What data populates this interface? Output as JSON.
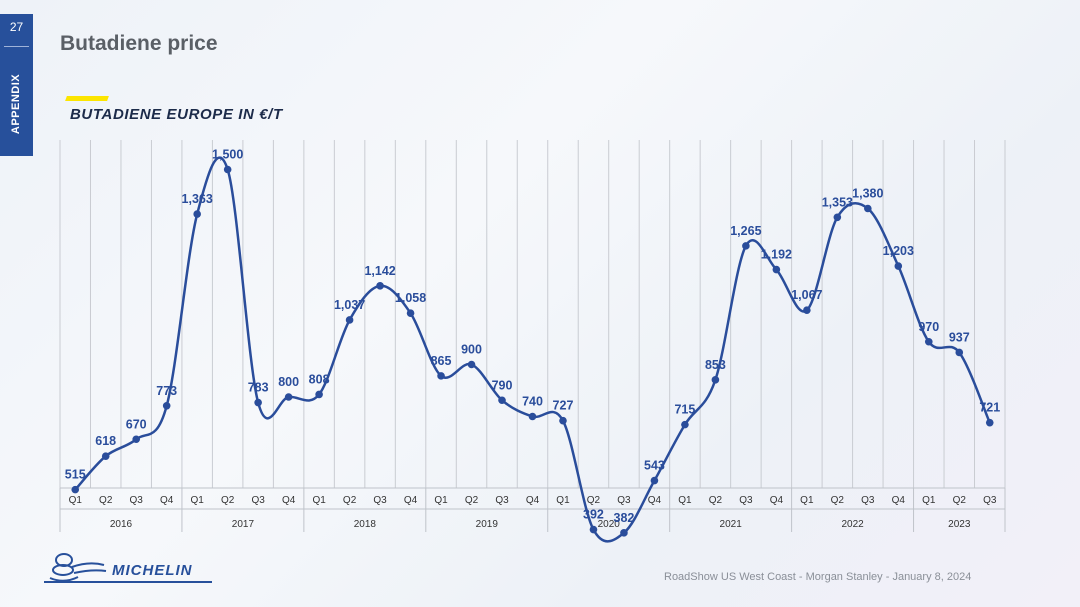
{
  "slide": {
    "number": "27",
    "section": "APPENDIX",
    "title": "Butadiene price",
    "footer": "RoadShow US West Coast - Morgan Stanley - January 8, 2024",
    "brand": "MICHELIN",
    "colors": {
      "accent": "#27509b",
      "highlight": "#fce500",
      "series": "#2a4d9b"
    },
    "icons": [
      "michelin-man-logo-icon"
    ]
  },
  "chart_data": {
    "type": "line",
    "title": "BUTADIENE EUROPE IN €/T",
    "categories": [
      "Q1",
      "Q2",
      "Q3",
      "Q4",
      "Q1",
      "Q2",
      "Q3",
      "Q4",
      "Q1",
      "Q2",
      "Q3",
      "Q4",
      "Q1",
      "Q2",
      "Q3",
      "Q4",
      "Q1",
      "Q2",
      "Q3",
      "Q4",
      "Q1",
      "Q2",
      "Q3",
      "Q4",
      "Q1",
      "Q2",
      "Q3",
      "Q4",
      "Q1",
      "Q2",
      "Q3"
    ],
    "years": [
      {
        "label": "2016",
        "quarters": 4
      },
      {
        "label": "2017",
        "quarters": 4
      },
      {
        "label": "2018",
        "quarters": 4
      },
      {
        "label": "2019",
        "quarters": 4
      },
      {
        "label": "2020",
        "quarters": 4
      },
      {
        "label": "2021",
        "quarters": 4
      },
      {
        "label": "2022",
        "quarters": 4
      },
      {
        "label": "2023",
        "quarters": 3
      }
    ],
    "series": [
      {
        "values": [
          515,
          618,
          670,
          773,
          1363,
          1500,
          783,
          800,
          808,
          1037,
          1142,
          1058,
          865,
          900,
          790,
          740,
          727,
          392,
          382,
          543,
          715,
          853,
          1265,
          1192,
          1067,
          1353,
          1380,
          1203,
          970,
          937,
          721
        ],
        "labels": [
          "515",
          "618",
          "670",
          "773",
          "1,363",
          "1,500",
          "783",
          "800",
          "808",
          "1,037",
          "1,142",
          "1,058",
          "865",
          "900",
          "790",
          "740",
          "727",
          "392",
          "382",
          "543",
          "715",
          "853",
          "1,265",
          "1,192",
          "1,067",
          "1,353",
          "1,380",
          "1,203",
          "970",
          "937",
          "721"
        ]
      }
    ],
    "ylim": [
      0,
      1600
    ],
    "grid": "vertical",
    "legend": "none"
  }
}
